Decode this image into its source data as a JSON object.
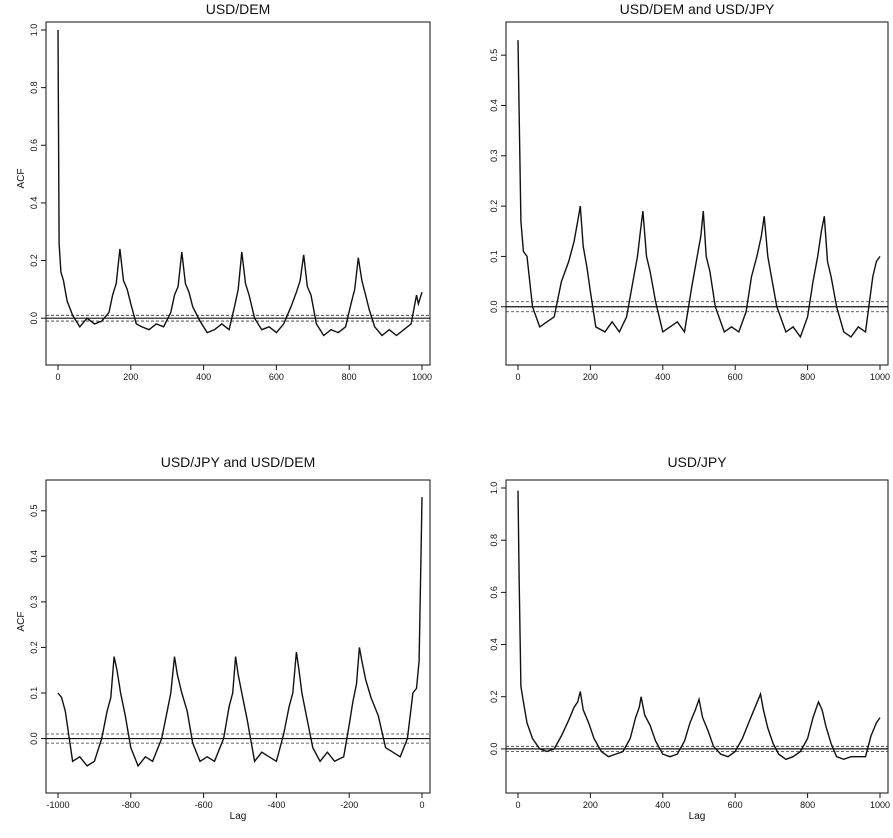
{
  "chart_data": [
    {
      "type": "line",
      "title": "USD/DEM",
      "ylabel": "ACF",
      "xlabel": "",
      "xlim": [
        0,
        1000
      ],
      "ylim": [
        -0.1,
        1.0
      ],
      "xticks": [
        0,
        200,
        400,
        600,
        800,
        1000
      ],
      "yticks": [
        0.0,
        0.2,
        0.4,
        0.6,
        0.8,
        1.0
      ],
      "xtick_labels": [
        "0",
        "200",
        "400",
        "600",
        "800",
        "1000"
      ],
      "ytick_labels": [
        "0.0",
        "0.2",
        "0.4",
        "0.6",
        "0.8",
        "1.0"
      ],
      "confidence_band": 0.01,
      "grid": false,
      "series": [
        {
          "x": [
            0,
            3,
            8,
            15,
            25,
            40,
            60,
            80,
            100,
            120,
            140,
            150,
            160,
            170,
            180,
            190,
            200,
            215,
            230,
            250,
            270,
            290,
            310,
            320,
            330,
            340,
            350,
            360,
            370,
            390,
            410,
            430,
            450,
            470,
            485,
            495,
            505,
            515,
            525,
            540,
            560,
            580,
            600,
            620,
            640,
            655,
            665,
            675,
            685,
            695,
            710,
            730,
            750,
            770,
            790,
            805,
            815,
            825,
            835,
            845,
            855,
            870,
            890,
            910,
            930,
            950,
            970,
            985,
            990,
            1000
          ],
          "y": [
            1.0,
            0.26,
            0.16,
            0.13,
            0.06,
            0.01,
            -0.03,
            0.0,
            -0.02,
            -0.01,
            0.02,
            0.08,
            0.12,
            0.24,
            0.13,
            0.1,
            0.05,
            -0.02,
            -0.03,
            -0.04,
            -0.02,
            -0.03,
            0.02,
            0.08,
            0.11,
            0.23,
            0.12,
            0.09,
            0.04,
            -0.01,
            -0.05,
            -0.04,
            -0.02,
            -0.04,
            0.04,
            0.1,
            0.23,
            0.12,
            0.08,
            0.0,
            -0.04,
            -0.03,
            -0.05,
            -0.02,
            0.04,
            0.09,
            0.13,
            0.22,
            0.11,
            0.08,
            -0.02,
            -0.06,
            -0.04,
            -0.05,
            -0.03,
            0.05,
            0.1,
            0.21,
            0.13,
            0.08,
            0.03,
            -0.03,
            -0.06,
            -0.04,
            -0.06,
            -0.04,
            -0.02,
            0.08,
            0.05,
            0.09
          ]
        }
      ]
    },
    {
      "type": "line",
      "title": "USD/DEM and USD/JPY",
      "ylabel": "",
      "xlabel": "",
      "xlim": [
        0,
        1000
      ],
      "ylim": [
        -0.08,
        0.55
      ],
      "xticks": [
        0,
        200,
        400,
        600,
        800,
        1000
      ],
      "yticks": [
        0.0,
        0.1,
        0.2,
        0.3,
        0.4,
        0.5
      ],
      "xtick_labels": [
        "0",
        "200",
        "400",
        "600",
        "800",
        "1000"
      ],
      "ytick_labels": [
        "0.0",
        "0.1",
        "0.2",
        "0.3",
        "0.4",
        "0.5"
      ],
      "confidence_band": 0.01,
      "grid": false,
      "series": [
        {
          "x": [
            0,
            3,
            8,
            15,
            25,
            40,
            60,
            80,
            100,
            120,
            140,
            155,
            165,
            172,
            180,
            190,
            200,
            215,
            240,
            260,
            280,
            300,
            320,
            330,
            338,
            345,
            355,
            365,
            380,
            400,
            420,
            440,
            460,
            480,
            495,
            505,
            512,
            520,
            530,
            545,
            570,
            590,
            610,
            630,
            645,
            660,
            672,
            680,
            690,
            700,
            715,
            740,
            760,
            780,
            800,
            815,
            828,
            838,
            846,
            855,
            865,
            880,
            900,
            920,
            940,
            960,
            980,
            990,
            1000
          ],
          "y": [
            0.53,
            0.39,
            0.17,
            0.11,
            0.1,
            0.0,
            -0.04,
            -0.03,
            -0.02,
            0.05,
            0.09,
            0.13,
            0.17,
            0.2,
            0.12,
            0.08,
            0.03,
            -0.04,
            -0.05,
            -0.03,
            -0.05,
            -0.02,
            0.06,
            0.1,
            0.15,
            0.19,
            0.1,
            0.07,
            0.01,
            -0.05,
            -0.04,
            -0.03,
            -0.05,
            0.04,
            0.1,
            0.14,
            0.19,
            0.1,
            0.07,
            0.0,
            -0.05,
            -0.04,
            -0.05,
            -0.01,
            0.06,
            0.1,
            0.14,
            0.18,
            0.1,
            0.06,
            0.0,
            -0.05,
            -0.04,
            -0.06,
            -0.02,
            0.05,
            0.1,
            0.15,
            0.18,
            0.09,
            0.06,
            0.0,
            -0.05,
            -0.06,
            -0.04,
            -0.05,
            0.06,
            0.09,
            0.1
          ]
        }
      ]
    },
    {
      "type": "line",
      "title": "USD/JPY and USD/DEM",
      "ylabel": "ACF",
      "xlabel": "Lag",
      "xlim": [
        -1000,
        0
      ],
      "ylim": [
        -0.08,
        0.55
      ],
      "xticks": [
        -1000,
        -800,
        -600,
        -400,
        -200,
        0
      ],
      "yticks": [
        0.0,
        0.1,
        0.2,
        0.3,
        0.4,
        0.5
      ],
      "xtick_labels": [
        "-1000",
        "-800",
        "-600",
        "-400",
        "-200",
        "0"
      ],
      "ytick_labels": [
        "0.0",
        "0.1",
        "0.2",
        "0.3",
        "0.4",
        "0.5"
      ],
      "confidence_band": 0.01,
      "grid": false,
      "series": [
        {
          "x": [
            -1000,
            -990,
            -980,
            -960,
            -940,
            -920,
            -900,
            -880,
            -865,
            -855,
            -846,
            -838,
            -828,
            -815,
            -800,
            -780,
            -760,
            -740,
            -715,
            -700,
            -690,
            -680,
            -672,
            -660,
            -645,
            -630,
            -610,
            -590,
            -570,
            -545,
            -530,
            -520,
            -512,
            -505,
            -495,
            -480,
            -460,
            -440,
            -420,
            -400,
            -380,
            -365,
            -355,
            -345,
            -338,
            -330,
            -320,
            -300,
            -280,
            -260,
            -240,
            -215,
            -200,
            -190,
            -180,
            -172,
            -165,
            -155,
            -140,
            -120,
            -100,
            -80,
            -60,
            -40,
            -25,
            -15,
            -8,
            -3,
            0
          ],
          "y": [
            0.1,
            0.09,
            0.06,
            -0.05,
            -0.04,
            -0.06,
            -0.05,
            0.0,
            0.06,
            0.09,
            0.18,
            0.15,
            0.1,
            0.05,
            -0.02,
            -0.06,
            -0.04,
            -0.05,
            0.0,
            0.06,
            0.1,
            0.18,
            0.14,
            0.1,
            0.06,
            -0.01,
            -0.05,
            -0.04,
            -0.05,
            0.0,
            0.07,
            0.1,
            0.18,
            0.14,
            0.1,
            0.04,
            -0.05,
            -0.03,
            -0.04,
            -0.05,
            0.01,
            0.07,
            0.1,
            0.19,
            0.15,
            0.1,
            0.06,
            -0.02,
            -0.05,
            -0.03,
            -0.05,
            -0.04,
            0.03,
            0.08,
            0.12,
            0.2,
            0.17,
            0.13,
            0.09,
            0.05,
            -0.02,
            -0.03,
            -0.04,
            0.0,
            0.1,
            0.11,
            0.17,
            0.39,
            0.53
          ]
        }
      ]
    },
    {
      "type": "line",
      "title": "USD/JPY",
      "ylabel": "",
      "xlabel": "Lag",
      "xlim": [
        0,
        1000
      ],
      "ylim": [
        -0.1,
        1.0
      ],
      "xticks": [
        0,
        200,
        400,
        600,
        800,
        1000
      ],
      "yticks": [
        0.0,
        0.2,
        0.4,
        0.6,
        0.8,
        1.0
      ],
      "xtick_labels": [
        "0",
        "200",
        "400",
        "600",
        "800",
        "1000"
      ],
      "ytick_labels": [
        "0.0",
        "0.2",
        "0.4",
        "0.6",
        "0.8",
        "1.0"
      ],
      "confidence_band": 0.01,
      "grid": false,
      "series": [
        {
          "x": [
            0,
            3,
            8,
            15,
            25,
            40,
            60,
            80,
            100,
            120,
            140,
            155,
            165,
            172,
            180,
            195,
            210,
            230,
            250,
            270,
            290,
            310,
            325,
            335,
            340,
            350,
            365,
            380,
            400,
            420,
            440,
            460,
            475,
            490,
            500,
            510,
            525,
            540,
            560,
            580,
            600,
            620,
            640,
            655,
            670,
            678,
            690,
            705,
            720,
            740,
            760,
            780,
            800,
            815,
            830,
            840,
            850,
            865,
            880,
            900,
            920,
            940,
            960,
            975,
            990,
            1000
          ],
          "y": [
            0.99,
            0.66,
            0.24,
            0.18,
            0.1,
            0.04,
            0.0,
            -0.01,
            0.0,
            0.05,
            0.11,
            0.16,
            0.18,
            0.22,
            0.15,
            0.1,
            0.04,
            -0.01,
            -0.03,
            -0.02,
            -0.01,
            0.04,
            0.12,
            0.16,
            0.2,
            0.13,
            0.09,
            0.03,
            -0.02,
            -0.03,
            -0.02,
            0.03,
            0.1,
            0.15,
            0.19,
            0.12,
            0.07,
            0.01,
            -0.02,
            -0.03,
            -0.01,
            0.04,
            0.11,
            0.16,
            0.21,
            0.15,
            0.08,
            0.02,
            -0.02,
            -0.04,
            -0.03,
            -0.01,
            0.04,
            0.12,
            0.18,
            0.15,
            0.09,
            0.02,
            -0.03,
            -0.04,
            -0.03,
            -0.03,
            -0.03,
            0.05,
            0.1,
            0.12
          ]
        }
      ]
    }
  ]
}
